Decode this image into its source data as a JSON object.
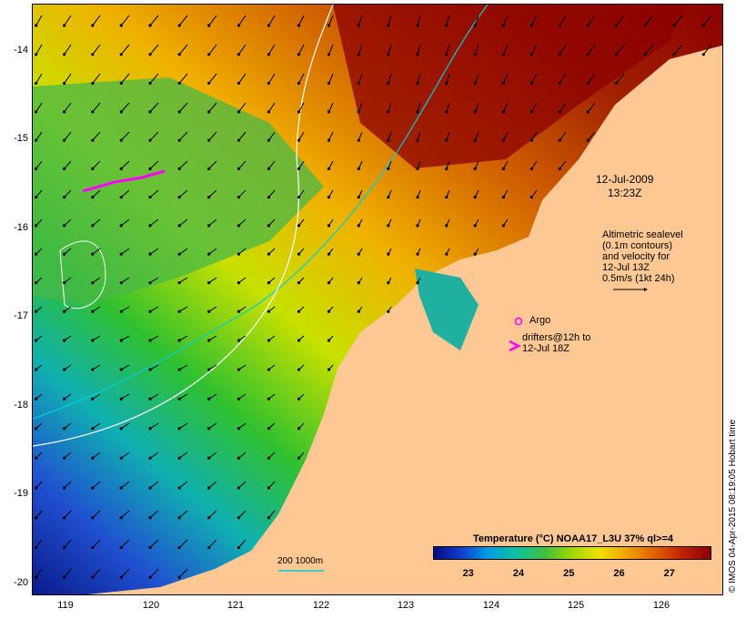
{
  "map": {
    "lat_ticks": [
      "-14",
      "-15",
      "-16",
      "-17",
      "-18",
      "-19",
      "-20"
    ],
    "lon_ticks": [
      "119",
      "120",
      "121",
      "122",
      "123",
      "124",
      "125",
      "126"
    ],
    "lat_range": [
      -20.1,
      -13.6
    ],
    "lon_range": [
      118.6,
      126.7
    ]
  },
  "annotations": {
    "date_line1": "12-Jul-2009",
    "date_line2": "13:23Z",
    "altimetry": [
      "Altimetric sealevel",
      "(0.1m contours)",
      "and velocity for",
      "12-Jul 13Z",
      "0.5m/s (1kt 24h)"
    ],
    "argo": "Argo",
    "drifters_line1": "drifters@12h to",
    "drifters_line2": "12-Jul 18Z",
    "scale_label": "200  1000m"
  },
  "colorbar": {
    "title": "Temperature (°C) NOAA17_L3U 37% ql>=4",
    "ticks": [
      "23",
      "24",
      "25",
      "26",
      "27"
    ],
    "tick_values": [
      23,
      24,
      25,
      26,
      27
    ],
    "range": [
      22.3,
      27.8
    ]
  },
  "credit": "© IMOS 04-Apr-2015 08:19:05 Hobart time",
  "colors": {
    "land": "#fdc894",
    "cold": "#0a1a8a",
    "warm": "#8c0000",
    "drifter": "#ff00ff",
    "contour_200": "#00d0d0",
    "contour_1000": "#ffffff"
  }
}
